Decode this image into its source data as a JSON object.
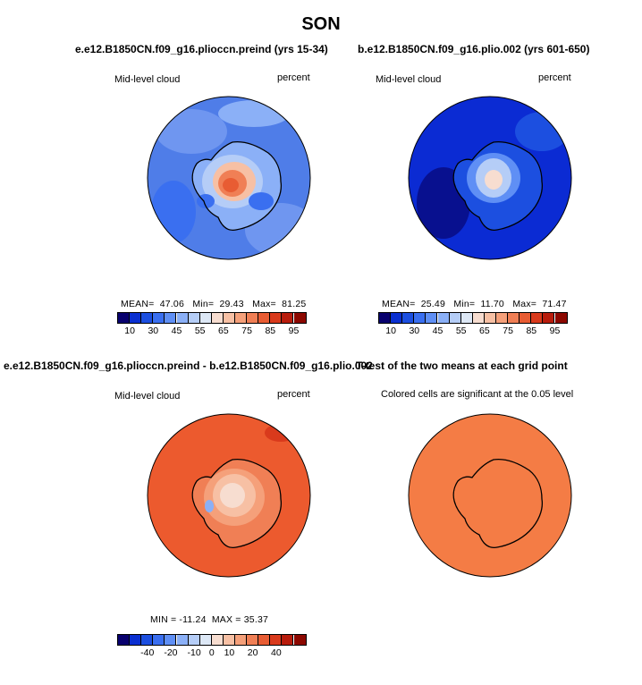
{
  "title": "SON",
  "panels": [
    {
      "id": "top-left",
      "title": "e.e12.B1850CN.f09_g16.plioccn.preind (yrs 15-34)",
      "label_left": "Mid-level cloud",
      "label_right": "percent",
      "stats": {
        "mean_label": "MEAN=",
        "mean": "47.06",
        "min_label": "Min=",
        "min": "29.43",
        "max_label": "Max=",
        "max": "81.25"
      },
      "colorbar_ticks": [
        "10",
        "30",
        "45",
        "55",
        "65",
        "75",
        "85",
        "95"
      ]
    },
    {
      "id": "top-right",
      "title": "b.e12.B1850CN.f09_g16.plio.002 (yrs 601-650)",
      "label_left": "Mid-level cloud",
      "label_right": "percent",
      "stats": {
        "mean_label": "MEAN=",
        "mean": "25.49",
        "min_label": "Min=",
        "min": "11.70",
        "max_label": "Max=",
        "max": "71.47"
      },
      "colorbar_ticks": [
        "10",
        "30",
        "45",
        "55",
        "65",
        "75",
        "85",
        "95"
      ]
    },
    {
      "id": "bottom-left",
      "title": "e.e12.B1850CN.f09_g16.plioccn.preind - b.e12.B1850CN.f09_g16.plio.002",
      "label_left": "Mid-level cloud",
      "label_right": "percent",
      "stats_line": "MIN = -11.24  MAX = 35.37",
      "colorbar_ticks": [
        "-40",
        "-20",
        "-10",
        "0",
        "10",
        "20",
        "40"
      ]
    },
    {
      "id": "bottom-right",
      "title": "T-test of the two means at each grid point",
      "label_left": "Colored cells are significant at the 0.05 level"
    }
  ],
  "colors": {
    "blue_red_scale": [
      "#08006e",
      "#0a2fd0",
      "#1c4fe0",
      "#3a6ff0",
      "#5f8ff5",
      "#8bb0f7",
      "#b5cdf7",
      "#dde8f6",
      "#f7ddd0",
      "#f7c0a4",
      "#f5a07a",
      "#f07f55",
      "#e85c33",
      "#d93a1c",
      "#b81c0c",
      "#8c0800"
    ],
    "panel1_base": "#4f7de8",
    "panel2_base": "#0b2bd3",
    "panel3_base": "#ec5a2e",
    "panel4_base": "#f47c45",
    "coastline": "#000000"
  }
}
